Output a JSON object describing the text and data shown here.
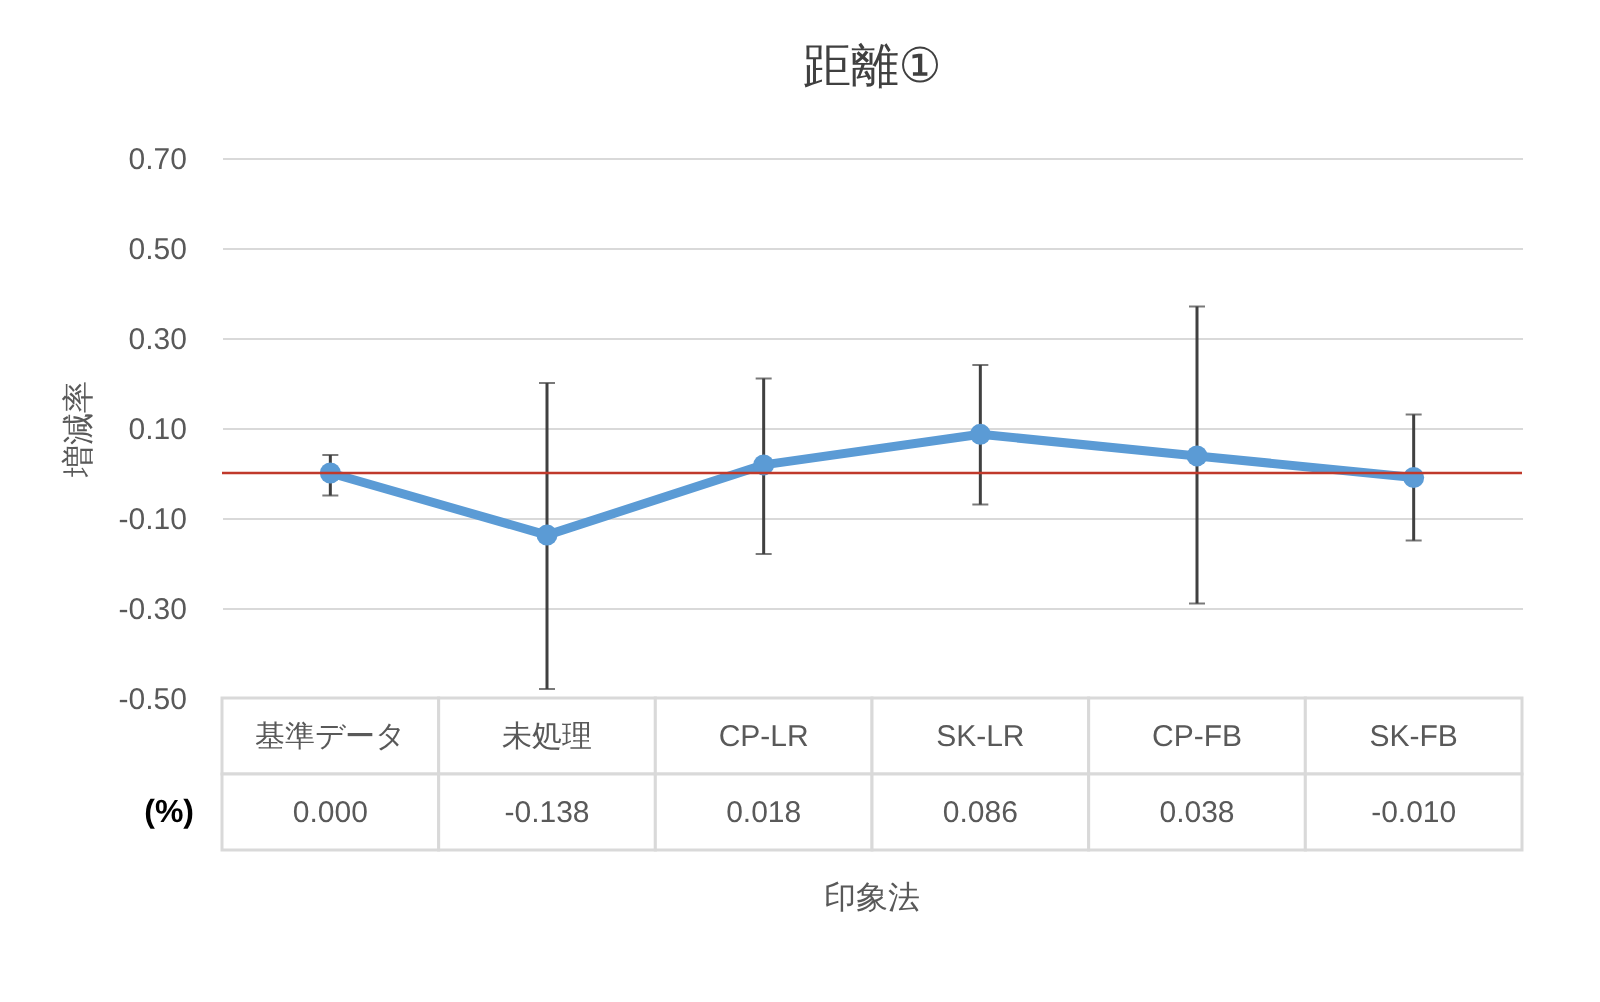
{
  "chart_data": {
    "type": "line",
    "title": "距離①",
    "xlabel": "印象法",
    "ylabel": "増減率",
    "categories": [
      "基準データ",
      "未処理",
      "CP-LR",
      "SK-LR",
      "CP-FB",
      "SK-FB"
    ],
    "series": [
      {
        "color": "#5b9bd5",
        "values": [
          0.0,
          -0.138,
          0.018,
          0.086,
          0.038,
          -0.01
        ],
        "errors": [
          [
            -0.05,
            0.04
          ],
          [
            -0.48,
            0.2
          ],
          [
            -0.18,
            0.21
          ],
          [
            -0.07,
            0.24
          ],
          [
            -0.29,
            0.37
          ],
          [
            -0.15,
            0.13
          ]
        ],
        "value_labels": [
          "0.000",
          "-0.138",
          "0.018",
          "0.086",
          "0.038",
          "-0.010"
        ]
      }
    ],
    "ylim": [
      -0.5,
      0.7
    ],
    "yticks": [
      {
        "value": -0.5,
        "label": "-0.50"
      },
      {
        "value": -0.3,
        "label": "-0.30"
      },
      {
        "value": -0.1,
        "label": "-0.10"
      },
      {
        "value": 0.1,
        "label": "0.10"
      },
      {
        "value": 0.3,
        "label": "0.30"
      },
      {
        "value": 0.5,
        "label": "0.50"
      },
      {
        "value": 0.7,
        "label": "0.70"
      }
    ],
    "grid": "y",
    "marker": "circle",
    "line_style": "solid",
    "ref_lines": [
      {
        "axis": "y",
        "value": 0,
        "color": "#c0392b"
      }
    ],
    "annotations": [
      "(%)"
    ]
  }
}
